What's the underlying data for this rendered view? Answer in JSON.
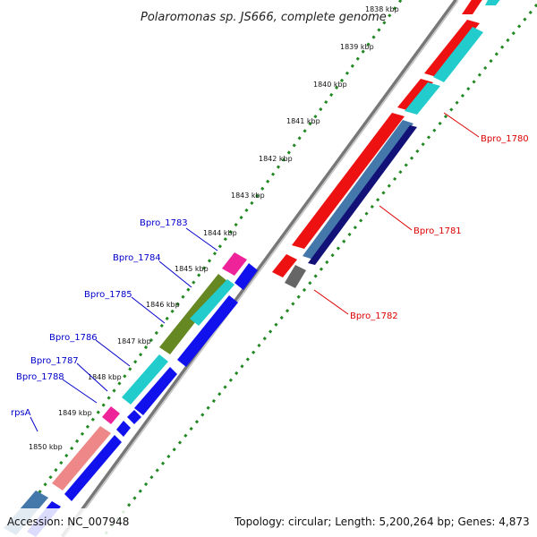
{
  "title": "Polaromonas sp. JS666, complete genome",
  "footer": {
    "accession": "Accession: NC_007948",
    "summary": "Topology: circular; Length: 5,200,264 bp; Genes: 4,873"
  },
  "kbp_labels": [
    "1838 kbp",
    "1839 kbp",
    "1840 kbp",
    "1841 kbp",
    "1842 kbp",
    "1843 kbp",
    "1844 kbp",
    "1845 kbp",
    "1846 kbp",
    "1847 kbp",
    "1848 kbp",
    "1849 kbp",
    "1850 kbp"
  ],
  "genes_left": [
    "Bpro_1783",
    "Bpro_1784",
    "Bpro_1785",
    "Bpro_1786",
    "Bpro_1787",
    "Bpro_1788",
    "rpsA"
  ],
  "genes_right": [
    "Bpro_1780",
    "Bpro_1781",
    "Bpro_1782"
  ],
  "colors": {
    "left_label": "#0000cc",
    "right_label": "#dd0000",
    "backbone": "#888888",
    "ticks": "#228822",
    "red": "#ee1111",
    "cyan": "#22cccc",
    "blue": "#1111ee",
    "navy": "#111177",
    "steel": "#4477aa",
    "magenta": "#ee2299",
    "olive": "#668822",
    "salmon": "#ee8888",
    "gray": "#666666"
  }
}
